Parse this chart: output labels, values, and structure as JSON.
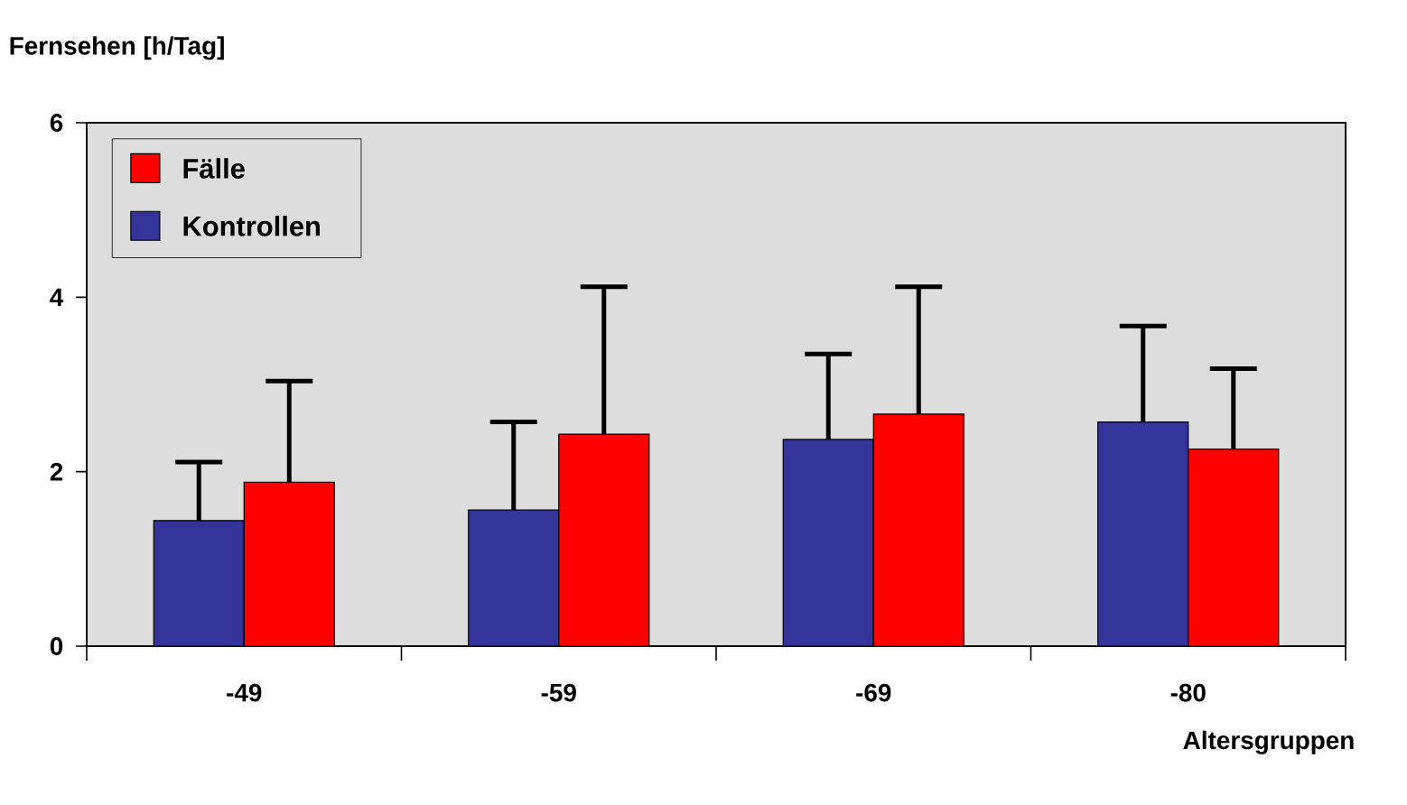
{
  "chart_data": {
    "type": "bar",
    "xlabel": "Altersgruppen",
    "ylabel": "Fernsehen [h/Tag]",
    "categories": [
      "-49",
      "-59",
      "-69",
      "-80"
    ],
    "series": [
      {
        "name": "Kontrollen",
        "color": "#333399",
        "values": [
          1.44,
          1.56,
          2.37,
          2.57
        ],
        "errors": [
          [
            1.44,
            2.11
          ],
          [
            1.56,
            2.57
          ],
          [
            2.37,
            3.35
          ],
          [
            2.57,
            3.67
          ]
        ]
      },
      {
        "name": "Fälle",
        "color": "#ff0000",
        "values": [
          1.88,
          2.43,
          2.66,
          2.26
        ],
        "errors": [
          [
            1.88,
            3.04
          ],
          [
            2.43,
            4.12
          ],
          [
            2.66,
            4.12
          ],
          [
            2.26,
            3.18
          ]
        ]
      }
    ],
    "ylim": [
      0,
      6
    ],
    "yticks": [
      0,
      2,
      4,
      6
    ],
    "grid": false,
    "legend": "top left"
  }
}
